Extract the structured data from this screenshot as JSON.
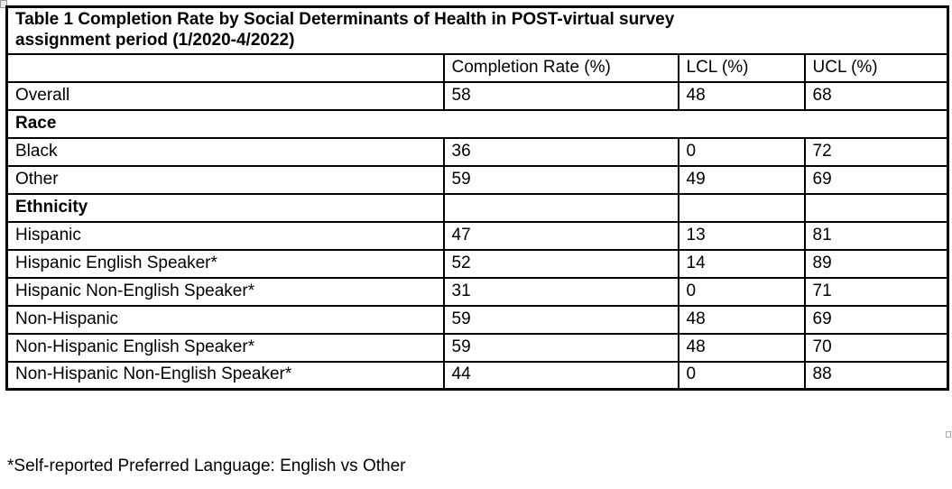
{
  "table": {
    "title_line1": "Table 1 Completion Rate by Social Determinants of Health in POST-virtual survey",
    "title_line2": "assignment period (1/2020-4/2022)",
    "columns": [
      "",
      "Completion Rate (%)",
      "LCL (%)",
      "UCL (%)"
    ],
    "rows": [
      {
        "label": "Overall",
        "indent": 0,
        "bold": false,
        "span": false,
        "completion": "58",
        "lcl": "48",
        "ucl": "68"
      },
      {
        "label": "Race",
        "indent": 0,
        "bold": true,
        "span": true,
        "completion": "",
        "lcl": "",
        "ucl": ""
      },
      {
        "label": "Black",
        "indent": 1,
        "bold": false,
        "span": false,
        "completion": "36",
        "lcl": "0",
        "ucl": "72"
      },
      {
        "label": "Other",
        "indent": 1,
        "bold": false,
        "span": false,
        "completion": "59",
        "lcl": "49",
        "ucl": "69"
      },
      {
        "label": "Ethnicity",
        "indent": 0,
        "bold": true,
        "span": false,
        "completion": "",
        "lcl": "",
        "ucl": ""
      },
      {
        "label": "Hispanic",
        "indent": 0,
        "bold": false,
        "span": false,
        "completion": "47",
        "lcl": "13",
        "ucl": "81"
      },
      {
        "label": "Hispanic English Speaker*",
        "indent": 2,
        "bold": false,
        "span": false,
        "completion": "52",
        "lcl": "14",
        "ucl": "89"
      },
      {
        "label": "Hispanic Non-English Speaker*",
        "indent": 2,
        "bold": false,
        "span": false,
        "completion": "31",
        "lcl": "0",
        "ucl": "71"
      },
      {
        "label": "Non-Hispanic",
        "indent": 0,
        "bold": false,
        "span": false,
        "completion": "59",
        "lcl": "48",
        "ucl": "69"
      },
      {
        "label": "Non-Hispanic English Speaker*",
        "indent": 2,
        "bold": false,
        "span": false,
        "completion": "59",
        "lcl": "48",
        "ucl": "70"
      },
      {
        "label": "Non-Hispanic Non-English Speaker*",
        "indent": 2,
        "bold": false,
        "span": false,
        "completion": "44",
        "lcl": "0",
        "ucl": "88"
      }
    ]
  },
  "footnote": "*Self-reported Preferred Language: English vs Other",
  "colors": {
    "border": "#000000",
    "background": "#ffffff",
    "text": "#000000"
  }
}
